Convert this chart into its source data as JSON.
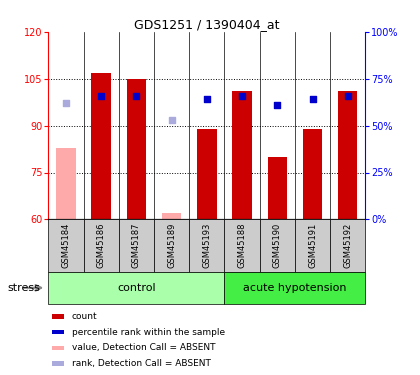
{
  "title": "GDS1251 / 1390404_at",
  "samples": [
    "GSM45184",
    "GSM45186",
    "GSM45187",
    "GSM45189",
    "GSM45193",
    "GSM45188",
    "GSM45190",
    "GSM45191",
    "GSM45192"
  ],
  "bar_values": [
    83,
    107,
    105,
    62,
    89,
    101,
    80,
    89,
    101
  ],
  "bar_colors": [
    "#ffaaaa",
    "#cc0000",
    "#cc0000",
    "#ffaaaa",
    "#cc0000",
    "#cc0000",
    "#cc0000",
    "#cc0000",
    "#cc0000"
  ],
  "dot_values_pct": [
    62,
    66,
    66,
    53,
    64,
    66,
    61,
    64,
    66
  ],
  "dot_colors": [
    "#aaaadd",
    "#0000cc",
    "#0000cc",
    "#aaaadd",
    "#0000cc",
    "#0000cc",
    "#0000cc",
    "#0000cc",
    "#0000cc"
  ],
  "ylim_left": [
    60,
    120
  ],
  "ylim_right": [
    0,
    100
  ],
  "yticks_left": [
    60,
    75,
    90,
    105,
    120
  ],
  "yticks_right": [
    0,
    25,
    50,
    75,
    100
  ],
  "ytick_labels_right": [
    "0%",
    "25%",
    "50%",
    "75%",
    "100%"
  ],
  "group_labels": [
    "control",
    "acute hypotension"
  ],
  "group_ranges": [
    [
      0,
      4
    ],
    [
      5,
      8
    ]
  ],
  "group_colors": [
    "#aaffaa",
    "#44ee44"
  ],
  "stress_label": "stress",
  "legend_items": [
    {
      "label": "count",
      "color": "#cc0000"
    },
    {
      "label": "percentile rank within the sample",
      "color": "#0000cc"
    },
    {
      "label": "value, Detection Call = ABSENT",
      "color": "#ffaaaa"
    },
    {
      "label": "rank, Detection Call = ABSENT",
      "color": "#aaaadd"
    }
  ],
  "bar_width": 0.55,
  "grid_color": "black",
  "grid_style": "dotted"
}
